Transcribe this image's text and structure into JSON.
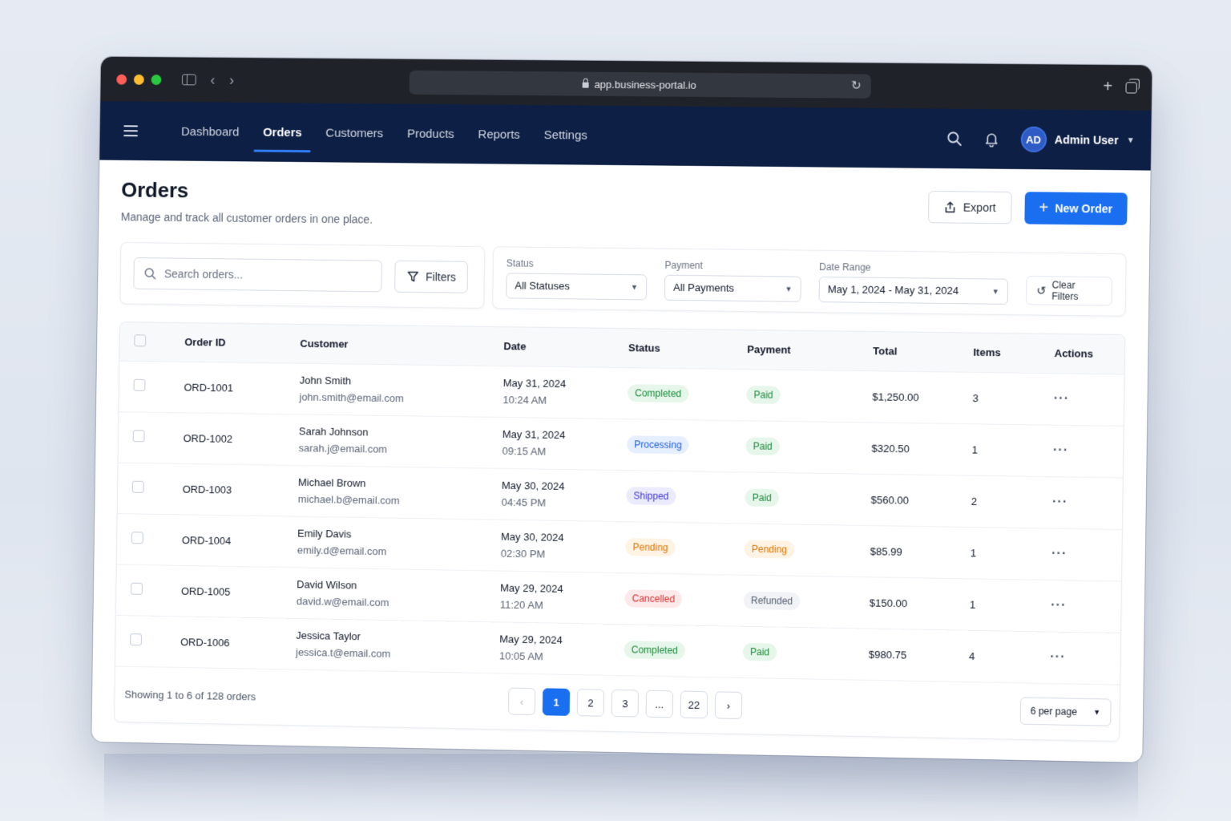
{
  "browser": {
    "url": "app.business-portal.io",
    "traffic_lights": [
      "#ff5f57",
      "#febc2e",
      "#28c840"
    ]
  },
  "nav": {
    "items": [
      {
        "label": "Dashboard",
        "active": false
      },
      {
        "label": "Orders",
        "active": true
      },
      {
        "label": "Customers",
        "active": false
      },
      {
        "label": "Products",
        "active": false
      },
      {
        "label": "Reports",
        "active": false
      },
      {
        "label": "Settings",
        "active": false
      }
    ],
    "user": {
      "initials": "AD",
      "name": "Admin User"
    }
  },
  "page": {
    "title": "Orders",
    "subtitle": "Manage and track all customer orders in one place.",
    "export_label": "Export",
    "new_order_label": "New Order"
  },
  "filters": {
    "search_placeholder": "Search orders...",
    "filters_label": "Filters",
    "status": {
      "label": "Status",
      "value": "All Statuses"
    },
    "payment": {
      "label": "Payment",
      "value": "All Payments"
    },
    "date_range": {
      "label": "Date Range",
      "value": "May 1, 2024 - May 31, 2024"
    },
    "clear_label": "Clear Filters"
  },
  "table": {
    "columns": [
      "Order ID",
      "Customer",
      "Date",
      "Status",
      "Payment",
      "Total",
      "Items",
      "Actions"
    ],
    "rows": [
      {
        "id": "ORD-1001",
        "name": "John Smith",
        "email": "john.smith@email.com",
        "date": "May 31, 2024",
        "time": "10:24 AM",
        "status": "Completed",
        "payment": "Paid",
        "total": "$1,250.00",
        "items": "3"
      },
      {
        "id": "ORD-1002",
        "name": "Sarah Johnson",
        "email": "sarah.j@email.com",
        "date": "May 31, 2024",
        "time": "09:15 AM",
        "status": "Processing",
        "payment": "Paid",
        "total": "$320.50",
        "items": "1"
      },
      {
        "id": "ORD-1003",
        "name": "Michael Brown",
        "email": "michael.b@email.com",
        "date": "May 30, 2024",
        "time": "04:45 PM",
        "status": "Shipped",
        "payment": "Paid",
        "total": "$560.00",
        "items": "2"
      },
      {
        "id": "ORD-1004",
        "name": "Emily Davis",
        "email": "emily.d@email.com",
        "date": "May 30, 2024",
        "time": "02:30 PM",
        "status": "Pending",
        "payment": "Pending",
        "total": "$85.99",
        "items": "1"
      },
      {
        "id": "ORD-1005",
        "name": "David Wilson",
        "email": "david.w@email.com",
        "date": "May 29, 2024",
        "time": "11:20 AM",
        "status": "Cancelled",
        "payment": "Refunded",
        "total": "$150.00",
        "items": "1"
      },
      {
        "id": "ORD-1006",
        "name": "Jessica Taylor",
        "email": "jessica.t@email.com",
        "date": "May 29, 2024",
        "time": "10:05 AM",
        "status": "Completed",
        "payment": "Paid",
        "total": "$980.75",
        "items": "4"
      }
    ],
    "actions_glyph": "···"
  },
  "footer": {
    "showing": "Showing 1 to 6 of 128 orders",
    "pages": [
      "1",
      "2",
      "3",
      "...",
      "22"
    ],
    "current_page": "1",
    "per_page": "6 per page"
  }
}
